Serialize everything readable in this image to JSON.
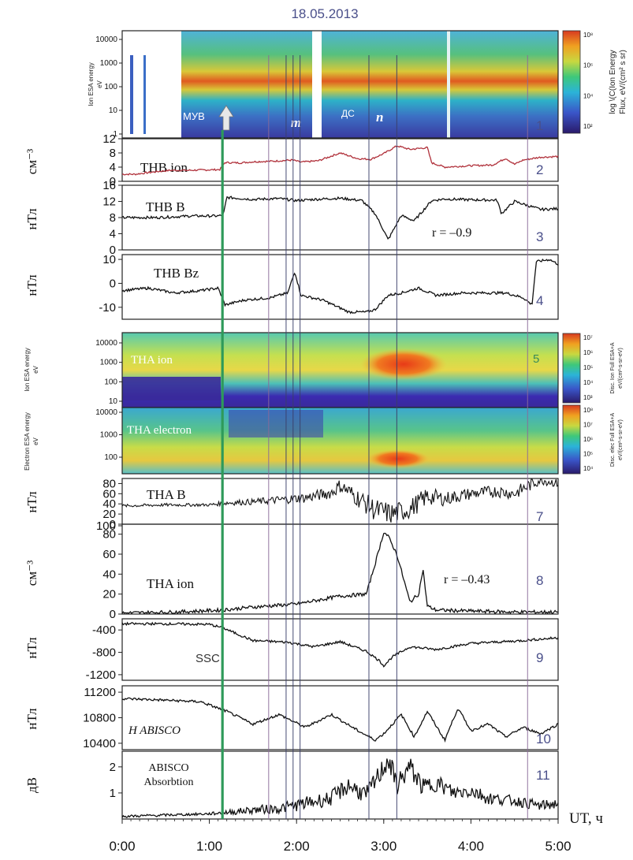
{
  "figure": {
    "date": "18.05.2013",
    "x_axis": {
      "label": "UT, ч",
      "ticks": [
        "0:00",
        "1:00",
        "2:00",
        "3:00",
        "4:00",
        "5:00"
      ],
      "range_hours": [
        0,
        5
      ]
    },
    "event_markers": {
      "ssc_label": "SSC",
      "muv_label": "МУВ",
      "dc_label": "ДС",
      "m_label": "m",
      "n_label": "n",
      "ssc_time_h": 1.15,
      "purple_lines_h": [
        1.68,
        1.88,
        1.96,
        2.04,
        2.83,
        3.15,
        4.65
      ],
      "colors": {
        "ssc": "#2e9a5a",
        "purple": "#8a6a9a",
        "dark": "#3a3f6a"
      }
    }
  },
  "chart_data": [
    {
      "panel": 1,
      "type": "heatmap",
      "title": "THB ion",
      "ylabel_lines": [
        "Ion ESA energy",
        "eV"
      ],
      "yticks": [
        "10000",
        "1000",
        "100",
        "10",
        "1"
      ],
      "colorbar_label_lines": [
        "log \\(C(Ion Energy",
        "Flux, eV/(cm² s sr)"
      ],
      "colorbar_ticks": [
        "10⁸",
        "10⁶",
        "10⁴",
        "10²"
      ],
      "number": "1"
    },
    {
      "panel": 2,
      "type": "line",
      "title": "THB ion",
      "ylabel": "см⁻³",
      "ylim": [
        0,
        12
      ],
      "yticks": [
        "12",
        "8",
        "4",
        "0"
      ],
      "line_color": "#b0303a",
      "x": [
        0.15,
        0.35,
        0.55,
        0.75,
        0.95,
        1.12,
        1.18,
        1.35,
        1.5,
        1.75,
        1.95,
        2.05,
        2.25,
        2.5,
        2.7,
        2.85,
        3.0,
        3.15,
        3.3,
        3.5,
        3.55,
        3.7,
        4.0,
        4.25,
        4.4,
        4.5,
        4.6,
        4.8,
        5.0
      ],
      "values": [
        2,
        2.6,
        3.1,
        3.1,
        3.2,
        3.3,
        5.3,
        5.2,
        5.5,
        5.7,
        6.0,
        5.4,
        5.8,
        8.0,
        6.4,
        6.2,
        7.8,
        10.0,
        9.0,
        9.5,
        5.2,
        4.0,
        4.4,
        4.6,
        6.5,
        4.8,
        6.0,
        6.8,
        7.0
      ],
      "number": "2"
    },
    {
      "panel": 3,
      "type": "line",
      "title": "THB B",
      "ylabel": "нТл",
      "ylim": [
        0,
        16
      ],
      "yticks": [
        "16",
        "12",
        "8",
        "4",
        "0"
      ],
      "annotation": "r = –0.9",
      "x": [
        0.0,
        0.4,
        0.8,
        1.1,
        1.16,
        1.2,
        1.5,
        1.8,
        2.0,
        2.2,
        2.5,
        2.75,
        2.9,
        3.0,
        3.05,
        3.1,
        3.2,
        3.35,
        3.55,
        3.7,
        4.0,
        4.3,
        4.35,
        4.5,
        4.8,
        5.0
      ],
      "values": [
        8,
        8,
        8.4,
        8.4,
        8.6,
        13,
        12.5,
        12.7,
        12.2,
        12.5,
        12.8,
        12.2,
        9,
        4.8,
        2.5,
        4.5,
        8.5,
        7.2,
        12.2,
        12.6,
        12.4,
        12.3,
        9,
        12,
        10,
        10.2
      ],
      "number": "3"
    },
    {
      "panel": 4,
      "type": "line",
      "title": "THB Bz",
      "ylabel": "нТл",
      "ylim": [
        -15,
        12
      ],
      "yticks": [
        "10",
        "0",
        "-10"
      ],
      "x": [
        0.0,
        0.3,
        0.6,
        0.9,
        1.1,
        1.18,
        1.4,
        1.7,
        1.9,
        1.98,
        2.05,
        2.3,
        2.6,
        2.8,
        2.9,
        3.05,
        3.2,
        3.4,
        3.6,
        3.9,
        4.2,
        4.4,
        4.6,
        4.7,
        4.75,
        4.9,
        5.0
      ],
      "values": [
        -3,
        -2,
        -4,
        -3,
        -2,
        -9,
        -7,
        -6,
        -4,
        5,
        -5,
        -7,
        -12,
        -12,
        -11,
        -5,
        -4,
        -2,
        -5,
        -4,
        -4,
        -4,
        -6,
        -9,
        9,
        10,
        8
      ],
      "number": "4"
    },
    {
      "panel": 5,
      "type": "heatmap",
      "title": "THA ion",
      "ylabel_lines": [
        "Ion ESA energy",
        "eV"
      ],
      "yticks": [
        "10000",
        "1000",
        "100",
        "10"
      ],
      "colorbar_label_lines": [
        "Disc. Ion Full ESA+A",
        "eV/(cm²-s-sr-eV)"
      ],
      "colorbar_ticks": [
        "10⁷",
        "10⁶",
        "10⁵",
        "10⁴",
        "10³"
      ],
      "number": "5"
    },
    {
      "panel": 6,
      "type": "heatmap",
      "title": "THA electron",
      "ylabel_lines": [
        "Electron ESA energy",
        "eV"
      ],
      "yticks": [
        "10000",
        "1000",
        "100"
      ],
      "colorbar_label_lines": [
        "Disc. elec Full ESA+A",
        "eV/(cm²-s-sr-eV)"
      ],
      "colorbar_ticks": [
        "10⁸",
        "10⁷",
        "10⁶",
        "10⁵",
        "10⁴"
      ]
    },
    {
      "panel": 7,
      "type": "line",
      "title": "THA B",
      "ylabel": "нТл",
      "ylim": [
        0,
        90
      ],
      "yticks": [
        "80",
        "60",
        "40",
        "20",
        "0"
      ],
      "x": [
        0.0,
        0.5,
        1.0,
        1.2,
        1.5,
        1.8,
        2.1,
        2.4,
        2.5,
        2.7,
        2.9,
        3.1,
        3.3,
        3.5,
        3.7,
        4.0,
        4.3,
        4.5,
        4.7,
        4.8,
        5.0
      ],
      "values": [
        36,
        38,
        38,
        42,
        44,
        48,
        52,
        62,
        76,
        52,
        28,
        20,
        30,
        55,
        50,
        60,
        65,
        60,
        80,
        88,
        80
      ],
      "noise_amp": [
        3,
        3,
        3,
        5,
        6,
        8,
        10,
        12,
        14,
        18,
        22,
        22,
        20,
        18,
        14,
        12,
        12,
        12,
        14,
        10,
        8
      ],
      "number": "7"
    },
    {
      "panel": 8,
      "type": "line",
      "title": "THA ion",
      "ylabel": "см⁻³",
      "ylim": [
        0,
        90
      ],
      "yticks": [
        "100",
        "80",
        "60",
        "40",
        "20",
        "0"
      ],
      "annotation": "r = –0.43",
      "x": [
        0.0,
        0.6,
        1.15,
        1.5,
        2.0,
        2.5,
        2.8,
        2.9,
        3.0,
        3.05,
        3.15,
        3.3,
        3.4,
        3.45,
        3.5,
        3.6,
        4.0,
        4.5,
        5.0
      ],
      "values": [
        1,
        2,
        4,
        7,
        10,
        18,
        20,
        50,
        82,
        78,
        60,
        12,
        20,
        45,
        8,
        4,
        3,
        2,
        2
      ],
      "number": "8"
    },
    {
      "panel": 9,
      "type": "line",
      "ylabel": "нТл",
      "ylim": [
        -1300,
        -200
      ],
      "yticks": [
        "-400",
        "-800",
        "-1200"
      ],
      "x": [
        0.0,
        0.5,
        1.0,
        1.15,
        1.5,
        1.9,
        2.2,
        2.5,
        2.8,
        2.95,
        3.0,
        3.1,
        3.3,
        3.6,
        4.0,
        4.5,
        5.0
      ],
      "values": [
        -290,
        -290,
        -300,
        -360,
        -590,
        -620,
        -700,
        -610,
        -780,
        -950,
        -1040,
        -880,
        -700,
        -750,
        -640,
        -600,
        -540
      ],
      "number": "9"
    },
    {
      "panel": 10,
      "type": "line",
      "title": "H ABISCO",
      "ylabel": "нТл",
      "ylim": [
        10300,
        11300
      ],
      "yticks": [
        "11200",
        "10800",
        "10400"
      ],
      "x": [
        0.0,
        0.4,
        0.9,
        1.2,
        1.5,
        1.8,
        2.1,
        2.4,
        2.7,
        2.9,
        3.0,
        3.2,
        3.35,
        3.5,
        3.7,
        3.85,
        4.0,
        4.2,
        4.4,
        4.6,
        4.8,
        5.0
      ],
      "values": [
        11100,
        11080,
        11050,
        10900,
        10700,
        10850,
        10650,
        10850,
        10600,
        10450,
        10550,
        10850,
        10500,
        10900,
        10450,
        10950,
        10600,
        10700,
        10500,
        10650,
        10550,
        10700
      ],
      "number": "10"
    },
    {
      "panel": 11,
      "type": "line",
      "title": "ABISCO Absorbtion",
      "ylabel": "дВ",
      "ylim": [
        0,
        2.6
      ],
      "yticks": [
        "2",
        "1"
      ],
      "x": [
        0.0,
        0.5,
        1.0,
        1.2,
        1.5,
        1.8,
        2.1,
        2.4,
        2.6,
        2.8,
        2.95,
        3.05,
        3.15,
        3.3,
        3.45,
        3.6,
        3.8,
        4.0,
        4.2,
        4.5,
        4.8,
        5.0
      ],
      "values": [
        0.1,
        0.15,
        0.2,
        0.25,
        0.35,
        0.4,
        0.6,
        0.8,
        1.3,
        0.9,
        1.7,
        2.3,
        1.3,
        2.0,
        1.2,
        1.4,
        1.0,
        1.1,
        0.8,
        0.7,
        0.5,
        0.6
      ],
      "noise_amp": [
        0.05,
        0.05,
        0.05,
        0.1,
        0.15,
        0.2,
        0.25,
        0.3,
        0.35,
        0.35,
        0.4,
        0.45,
        0.4,
        0.4,
        0.35,
        0.35,
        0.3,
        0.3,
        0.25,
        0.2,
        0.2,
        0.2
      ],
      "number": "11"
    }
  ]
}
